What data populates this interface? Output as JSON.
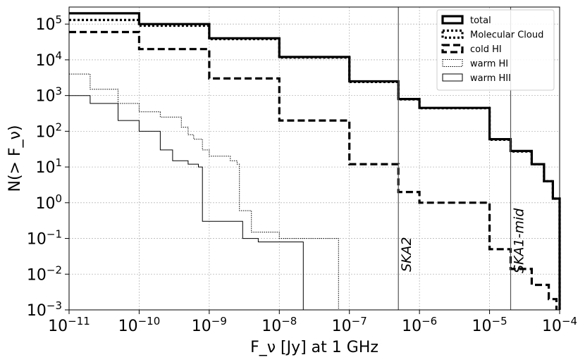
{
  "chart_data": {
    "type": "line",
    "step": true,
    "xscale": "log",
    "yscale": "log",
    "xlim": [
      1e-11,
      0.0001
    ],
    "ylim": [
      0.001,
      300000.0
    ],
    "grid": true,
    "legend_position": "top-right",
    "xlabel": "F_ν [Jy] at 1 GHz",
    "ylabel": "N(> F_ν)",
    "x_ticks": [
      "10^-11",
      "10^-10",
      "10^-9",
      "10^-8",
      "10^-7",
      "10^-6",
      "10^-5",
      "10^-4"
    ],
    "y_ticks": [
      "10^-3",
      "10^-2",
      "10^-1",
      "10^0",
      "10^1",
      "10^2",
      "10^3",
      "10^4",
      "10^5"
    ],
    "series": [
      {
        "name": "total",
        "style": "thick-solid",
        "x": [
          1e-11,
          1e-10,
          1e-09,
          1e-08,
          1e-07,
          5e-07,
          1e-06,
          1e-05,
          2e-05,
          4e-05,
          6e-05,
          8e-05,
          0.0001
        ],
        "y": [
          200000,
          100000,
          40000,
          12000,
          2500,
          800,
          450,
          60,
          28,
          12,
          4,
          1.3,
          0.001
        ]
      },
      {
        "name": "Molecular Cloud",
        "style": "thick-dotted",
        "x": [
          1e-11,
          1e-10,
          1e-09,
          1e-08,
          1e-07,
          5e-07,
          1e-06,
          1e-05,
          2e-05,
          4e-05,
          6e-05,
          8e-05,
          0.0001
        ],
        "y": [
          130000,
          90000,
          38000,
          11500,
          2400,
          780,
          440,
          58,
          27,
          12,
          4,
          1.3,
          0.001
        ]
      },
      {
        "name": "cold HI",
        "style": "thick-dashed",
        "x": [
          1e-11,
          1e-10,
          1e-09,
          1e-08,
          1e-07,
          5e-07,
          1e-06,
          1e-05,
          2e-05,
          4e-05,
          7e-05,
          9e-05
        ],
        "y": [
          60000,
          20000,
          3000,
          200,
          12,
          2,
          1,
          0.05,
          0.014,
          0.005,
          0.002,
          0.001
        ]
      },
      {
        "name": "warm HI",
        "style": "thin-dotted",
        "x": [
          1e-11,
          2e-11,
          5e-11,
          1e-10,
          2e-10,
          4e-10,
          5e-10,
          6e-10,
          8e-10,
          1e-09,
          2e-09,
          2.5e-09,
          2.7e-09,
          4e-09,
          1e-08,
          3e-08,
          7e-08,
          7e-08
        ],
        "y": [
          4000,
          1500,
          600,
          350,
          250,
          130,
          80,
          60,
          30,
          20,
          15,
          12,
          0.6,
          0.15,
          0.1,
          0.1,
          0.1,
          0.001
        ]
      },
      {
        "name": "warm HII",
        "style": "thin-solid",
        "x": [
          1e-11,
          2e-11,
          5e-11,
          1e-10,
          2e-10,
          3e-10,
          5e-10,
          7e-10,
          8e-10,
          8e-10,
          2e-09,
          3e-09,
          5e-09,
          1e-08,
          2.2e-08,
          2.2e-08
        ],
        "y": [
          1000,
          600,
          200,
          100,
          30,
          15,
          12,
          10,
          10,
          0.3,
          0.3,
          0.1,
          0.08,
          0.08,
          0.08,
          0.001
        ]
      }
    ],
    "vertical_lines": [
      {
        "label": "SKA2",
        "x": 5e-07
      },
      {
        "label": "SKA1-mid",
        "x": 2e-05
      }
    ]
  }
}
